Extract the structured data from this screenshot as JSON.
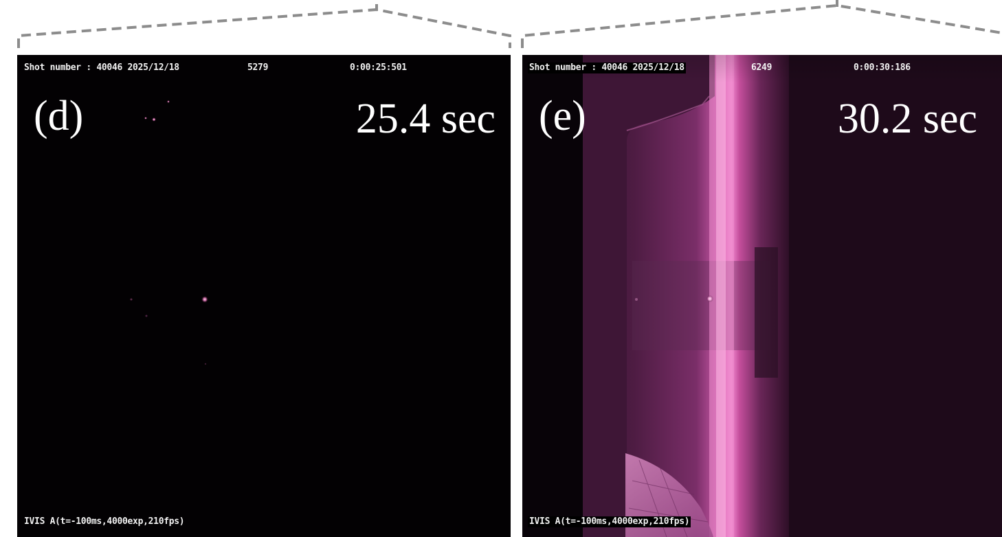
{
  "panels": [
    {
      "id": "d",
      "letter": "(d)",
      "time_label": "25.4 sec",
      "hud": {
        "shot": "Shot number : 40046 2025/12/18",
        "frame": "5279",
        "timecode": "0:00:25:501",
        "camera": "IVIS A(t=-100ms,4000exp,210fps)"
      }
    },
    {
      "id": "e",
      "letter": "(e)",
      "time_label": "30.2 sec",
      "hud": {
        "shot": "Shot number : 40046 2025/12/18",
        "frame": "6249",
        "timecode": "0:00:30:186",
        "camera": "IVIS A(t=-100ms,4000exp,210fps)"
      }
    }
  ],
  "colors": {
    "dashed_line": "#8c8c8c",
    "plasma": "#c04a9a",
    "hud_text": "#f2f2f2"
  }
}
